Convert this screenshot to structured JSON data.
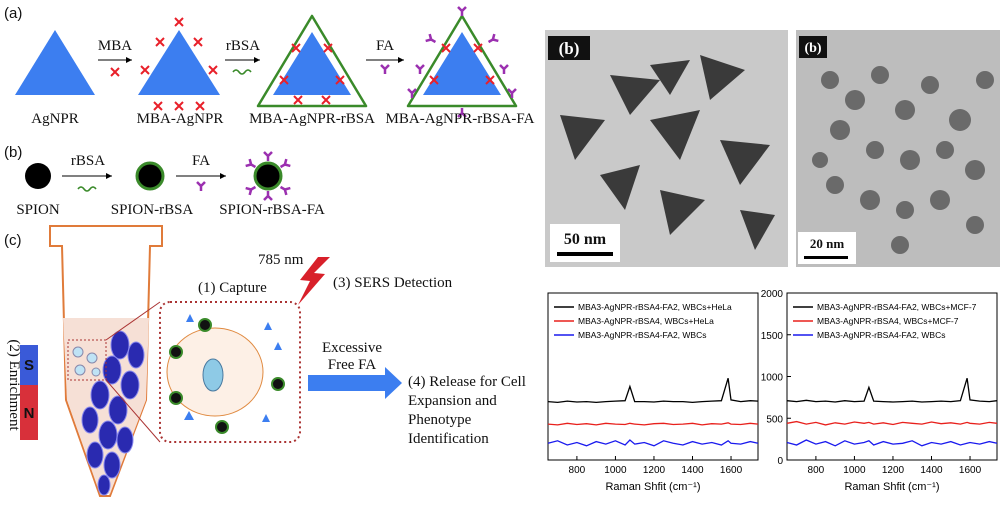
{
  "schematic": {
    "panel_a": {
      "label": "(a)",
      "steps": [
        "MBA",
        "rBSA",
        "FA"
      ],
      "products": [
        "AgNPR",
        "MBA-AgNPR",
        "MBA-AgNPR-rBSA",
        "MBA-AgNPR-rBSA-FA"
      ]
    },
    "panel_b": {
      "label": "(b)",
      "steps": [
        "rBSA",
        "FA"
      ],
      "products": [
        "SPION",
        "SPION-rBSA",
        "SPION-rBSA-FA"
      ]
    },
    "panel_c": {
      "label": "(c)",
      "enrichment": "(2) Enrichment",
      "magnet": [
        "S",
        "N"
      ],
      "capture": "(1) Capture",
      "laser": "785 nm",
      "detection": "(3) SERS Detection",
      "wash": [
        "Excessive",
        "Free FA"
      ],
      "release": [
        "(4) Release for Cell",
        "Expansion and",
        "Phenotype",
        "Identification"
      ]
    }
  },
  "micrographs": [
    {
      "label": "(b)",
      "scale_bar": "50 nm"
    },
    {
      "label": "(b)",
      "scale_bar": "20 nm"
    }
  ],
  "chart_data": [
    {
      "type": "line",
      "xlabel": "Raman Shfit (cm⁻¹)",
      "x": [
        650,
        700,
        750,
        800,
        850,
        900,
        950,
        1000,
        1050,
        1075,
        1100,
        1150,
        1200,
        1250,
        1300,
        1350,
        1400,
        1450,
        1500,
        1550,
        1585,
        1600,
        1650,
        1700,
        1740
      ],
      "xlim": [
        650,
        1740
      ],
      "ylim": [
        0,
        2000
      ],
      "xticks": [
        800,
        1000,
        1200,
        1400,
        1600
      ],
      "legend": "upper left",
      "series": [
        {
          "name": "MBA3-AgNPR-rBSA4-FA2, WBCs+HeLa",
          "color": "#000000",
          "values": [
            700,
            690,
            705,
            695,
            700,
            690,
            700,
            705,
            710,
            880,
            700,
            700,
            695,
            705,
            700,
            700,
            690,
            700,
            705,
            710,
            980,
            720,
            700,
            710,
            705
          ]
        },
        {
          "name": "MBA3-AgNPR-rBSA4, WBCs+HeLa",
          "color": "#e8201c",
          "values": [
            430,
            420,
            440,
            425,
            435,
            420,
            440,
            430,
            425,
            440,
            430,
            420,
            435,
            440,
            425,
            430,
            440,
            420,
            435,
            430,
            445,
            430,
            425,
            440,
            430
          ]
        },
        {
          "name": "MBA3-AgNPR-rBSA4-FA2, WBCs",
          "color": "#1a1aee",
          "values": [
            200,
            230,
            180,
            210,
            170,
            220,
            190,
            230,
            180,
            240,
            190,
            210,
            170,
            230,
            200,
            180,
            220,
            190,
            210,
            180,
            230,
            200,
            190,
            220,
            200
          ]
        }
      ]
    },
    {
      "type": "line",
      "xlabel": "Raman Shfit (cm⁻¹)",
      "x": [
        650,
        700,
        750,
        800,
        850,
        900,
        950,
        1000,
        1050,
        1075,
        1100,
        1150,
        1200,
        1250,
        1300,
        1350,
        1400,
        1450,
        1500,
        1550,
        1585,
        1600,
        1650,
        1700,
        1740
      ],
      "xlim": [
        650,
        1740
      ],
      "ylim": [
        0,
        2000
      ],
      "xticks": [
        800,
        1000,
        1200,
        1400,
        1600
      ],
      "yticks": [
        0,
        500,
        1000,
        1500,
        2000
      ],
      "legend": "upper left",
      "series": [
        {
          "name": "MBA3-AgNPR-rBSA4-FA2, WBCs+MCF-7",
          "color": "#000000",
          "values": [
            710,
            700,
            715,
            700,
            705,
            695,
            710,
            700,
            705,
            870,
            705,
            700,
            695,
            700,
            705,
            695,
            700,
            705,
            700,
            710,
            980,
            720,
            705,
            700,
            710
          ]
        },
        {
          "name": "MBA3-AgNPR-rBSA4, WBCs+MCF-7",
          "color": "#e8201c",
          "values": [
            440,
            460,
            430,
            450,
            420,
            445,
            430,
            455,
            440,
            450,
            430,
            445,
            425,
            450,
            440,
            430,
            455,
            435,
            445,
            430,
            450,
            440,
            430,
            450,
            440
          ]
        },
        {
          "name": "MBA3-AgNPR-rBSA4-FA2, WBCs",
          "color": "#1a1aee",
          "values": [
            210,
            180,
            240,
            190,
            220,
            170,
            230,
            190,
            210,
            230,
            180,
            220,
            190,
            200,
            230,
            170,
            210,
            190,
            220,
            180,
            200,
            210,
            190,
            220,
            200
          ]
        }
      ]
    }
  ]
}
